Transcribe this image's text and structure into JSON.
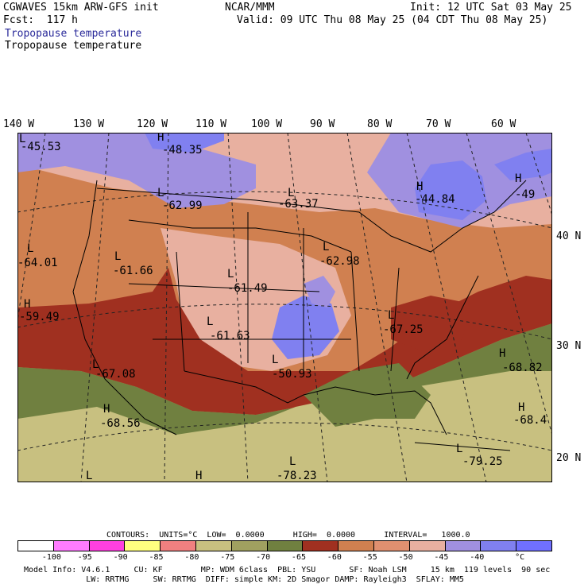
{
  "header": {
    "model": "CGWAVES 15km ARW-GFS init",
    "fcst": "Fcst:  117 h",
    "org": "NCAR/MMM",
    "init": "Init: 12 UTC Sat 03 May 25",
    "valid": "Valid: 09 UTC Thu 08 May 25 (04 CDT Thu 08 May 25)",
    "field1": "Tropopause temperature",
    "field2": "Tropopause temperature"
  },
  "lon_labels": [
    "140 W",
    "130 W",
    "120 W",
    "110 W",
    "100 W",
    "90 W",
    "80 W",
    "70 W",
    "60 W"
  ],
  "lat_labels": [
    "40 N",
    "30 N",
    "20 N"
  ],
  "map_labels": [
    {
      "hl": "L",
      "val": "-45.53"
    },
    {
      "hl": "H",
      "val": "-48.35"
    },
    {
      "hl": "L",
      "val": "-62.99"
    },
    {
      "hl": "L",
      "val": "-63.37"
    },
    {
      "hl": "H",
      "val": "-44.84"
    },
    {
      "hl": "H",
      "val": "-49"
    },
    {
      "hl": "L",
      "val": "-64.01"
    },
    {
      "hl": "L",
      "val": "-61.66"
    },
    {
      "hl": "L",
      "val": "-62.98"
    },
    {
      "hl": "L",
      "val": "-61.49"
    },
    {
      "hl": "H",
      "val": "-59.49"
    },
    {
      "hl": "L",
      "val": "-61.63"
    },
    {
      "hl": "L",
      "val": "-67.25"
    },
    {
      "hl": "L",
      "val": "-67.08"
    },
    {
      "hl": "L",
      "val": "-50.93"
    },
    {
      "hl": "H",
      "val": "-68.82"
    },
    {
      "hl": "H",
      "val": "-68.56"
    },
    {
      "hl": "H",
      "val": "-68.4"
    },
    {
      "hl": "L",
      "val": "-79.25"
    },
    {
      "hl": "L",
      "val": "-78.23"
    },
    {
      "hl": "L",
      "val": ""
    },
    {
      "hl": "H",
      "val": ""
    }
  ],
  "contours_line": "CONTOURS:  UNITS=°C  LOW=  0.0000      HIGH=  0.0000      INTERVAL=   1000.0",
  "colorbar": {
    "colors": [
      "#ffffff",
      "#ff7cff",
      "#ff40e0",
      "#ffff80",
      "#f08080",
      "#c8c080",
      "#a0a060",
      "#708040",
      "#a03020",
      "#d08050",
      "#e09070",
      "#e8b0a0",
      "#a090e0",
      "#8080f0",
      "#7070ff"
    ],
    "labels": [
      "-100",
      "-95",
      "-90",
      "-85",
      "-80",
      "-75",
      "-70",
      "-65",
      "-60",
      "-55",
      "-50",
      "-45",
      "-40",
      "°C"
    ]
  },
  "footer": {
    "line1": "Model Info: V4.6.1     CU: KF        MP: WDM 6class  PBL: YSU       SF: Noah LSM     15 km  119 levels  90 sec",
    "line2": "             LW: RRTMG     SW: RRTMG  DIFF: simple KM: 2D Smagor DAMP: Rayleigh3  SFLAY: MM5"
  }
}
